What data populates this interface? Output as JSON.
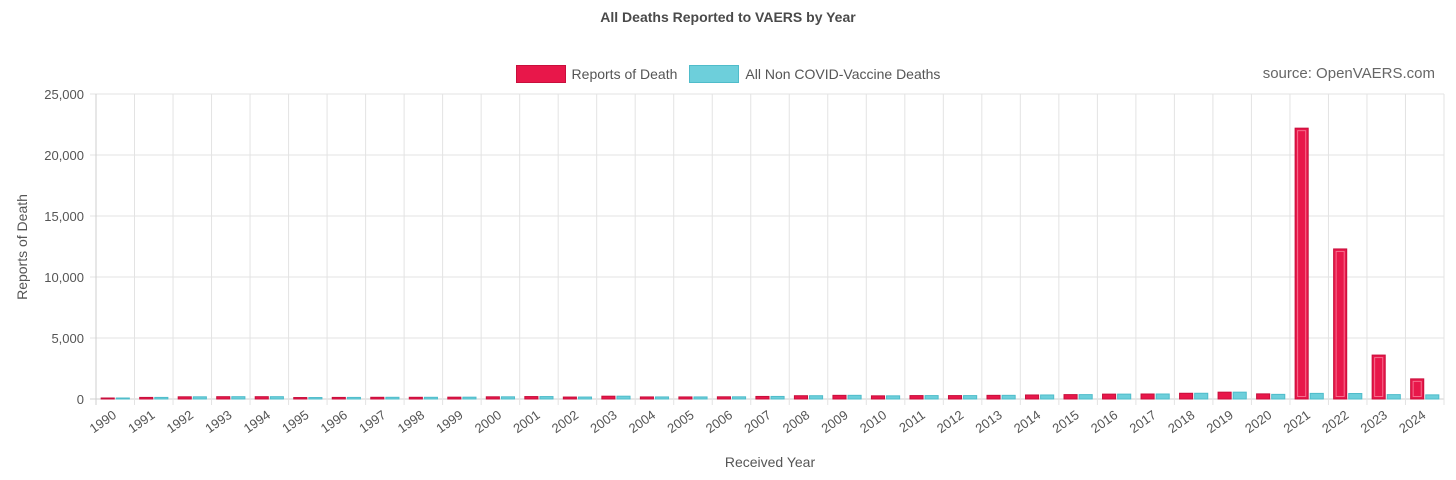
{
  "chart_data": {
    "type": "bar",
    "title": "All Deaths Reported to VAERS by Year",
    "xlabel": "Received Year",
    "ylabel": "Reports of Death",
    "ylim": [
      0,
      25000
    ],
    "yticks": [
      0,
      5000,
      10000,
      15000,
      20000,
      25000
    ],
    "ytick_labels": [
      "0",
      "5,000",
      "10,000",
      "15,000",
      "20,000",
      "25,000"
    ],
    "grid": true,
    "legend_position": "top-center",
    "categories": [
      "1990",
      "1991",
      "1992",
      "1993",
      "1994",
      "1995",
      "1996",
      "1997",
      "1998",
      "1999",
      "2000",
      "2001",
      "2002",
      "2003",
      "2004",
      "2005",
      "2006",
      "2007",
      "2008",
      "2009",
      "2010",
      "2011",
      "2012",
      "2013",
      "2014",
      "2015",
      "2016",
      "2017",
      "2018",
      "2019",
      "2020",
      "2021",
      "2022",
      "2023",
      "2024"
    ],
    "series": [
      {
        "name": "Reports of Death",
        "color": "#e8174a",
        "border_color": "#c80f3c",
        "values": [
          40,
          130,
          180,
          190,
          190,
          120,
          130,
          140,
          140,
          150,
          180,
          200,
          160,
          230,
          170,
          170,
          180,
          210,
          270,
          300,
          260,
          280,
          280,
          300,
          330,
          360,
          400,
          410,
          470,
          560,
          420,
          22200,
          12300,
          3600,
          1650
        ]
      },
      {
        "name": "All Non COVID-Vaccine Deaths",
        "color": "#6dcfdb",
        "border_color": "#4fbcca",
        "values": [
          40,
          130,
          180,
          190,
          190,
          120,
          130,
          140,
          140,
          150,
          180,
          200,
          160,
          230,
          170,
          170,
          180,
          210,
          270,
          300,
          260,
          280,
          280,
          300,
          330,
          360,
          400,
          410,
          470,
          560,
          380,
          460,
          450,
          360,
          340
        ]
      }
    ]
  },
  "source_note": "source: OpenVAERS.com"
}
